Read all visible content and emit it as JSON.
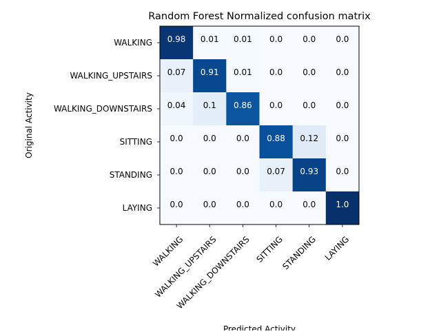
{
  "chart_data": {
    "type": "heatmap",
    "title": "Random Forest Normalized confusion matrix",
    "xlabel": "Predicted Activity",
    "ylabel": "Original Activity",
    "x_categories": [
      "WALKING",
      "WALKING_UPSTAIRS",
      "WALKING_DOWNSTAIRS",
      "SITTING",
      "STANDING",
      "LAYING"
    ],
    "y_categories": [
      "WALKING",
      "WALKING_UPSTAIRS",
      "WALKING_DOWNSTAIRS",
      "SITTING",
      "STANDING",
      "LAYING"
    ],
    "values": [
      [
        0.98,
        0.01,
        0.01,
        0.0,
        0.0,
        0.0
      ],
      [
        0.07,
        0.91,
        0.01,
        0.0,
        0.0,
        0.0
      ],
      [
        0.04,
        0.1,
        0.86,
        0.0,
        0.0,
        0.0
      ],
      [
        0.0,
        0.0,
        0.0,
        0.88,
        0.12,
        0.0
      ],
      [
        0.0,
        0.0,
        0.0,
        0.07,
        0.93,
        0.0
      ],
      [
        0.0,
        0.0,
        0.0,
        0.0,
        0.0,
        1.0
      ]
    ],
    "value_labels": [
      [
        "0.98",
        "0.01",
        "0.01",
        "0.0",
        "0.0",
        "0.0"
      ],
      [
        "0.07",
        "0.91",
        "0.01",
        "0.0",
        "0.0",
        "0.0"
      ],
      [
        "0.04",
        "0.1",
        "0.86",
        "0.0",
        "0.0",
        "0.0"
      ],
      [
        "0.0",
        "0.0",
        "0.0",
        "0.88",
        "0.12",
        "0.0"
      ],
      [
        "0.0",
        "0.0",
        "0.0",
        "0.07",
        "0.93",
        "0.0"
      ],
      [
        "0.0",
        "0.0",
        "0.0",
        "0.0",
        "0.0",
        "1.0"
      ]
    ],
    "colormap": "Blues",
    "colors": {
      "low": "#f7fbff",
      "mid": "#6baed6",
      "high": "#08306b",
      "text_dark": "#000000",
      "text_light": "#ffffff"
    },
    "grid": false,
    "legend": "none"
  }
}
